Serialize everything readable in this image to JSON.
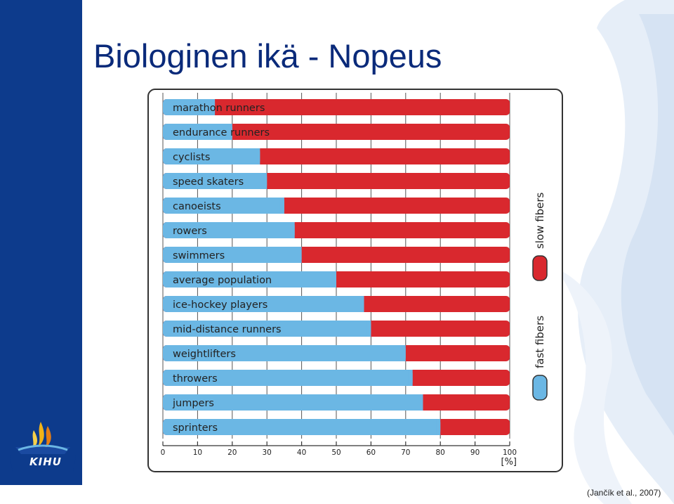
{
  "slide": {
    "title": "Biologinen ikä - Nopeus",
    "citation": "(Jančík et al., 2007)",
    "logo_text": "KIHU"
  },
  "colors": {
    "fast": "#6bb7e4",
    "slow": "#d9282e",
    "sidebar": "#0d3b8c",
    "title": "#0a2a7a"
  },
  "chart_data": {
    "type": "bar",
    "orientation": "horizontal",
    "stacked": true,
    "categories": [
      "marathon runners",
      "endurance runners",
      "cyclists",
      "speed skaters",
      "canoeists",
      "rowers",
      "swimmers",
      "average population",
      "ice-hockey players",
      "mid-distance runners",
      "weightlifters",
      "throwers",
      "jumpers",
      "sprinters"
    ],
    "series": [
      {
        "name": "fast fibers",
        "values": [
          15,
          20,
          28,
          30,
          35,
          38,
          40,
          50,
          58,
          60,
          70,
          72,
          75,
          80
        ]
      },
      {
        "name": "slow fibers",
        "values": [
          85,
          80,
          72,
          70,
          65,
          62,
          60,
          50,
          42,
          40,
          30,
          28,
          25,
          20
        ]
      }
    ],
    "xlim": [
      0,
      100
    ],
    "xticks": [
      "0",
      "10",
      "20",
      "30",
      "40",
      "50",
      "60",
      "70",
      "80",
      "90",
      "100"
    ],
    "xlabel": "[%]",
    "legend": [
      "slow fibers",
      "fast fibers"
    ],
    "legend_position": "right",
    "grid": true
  }
}
